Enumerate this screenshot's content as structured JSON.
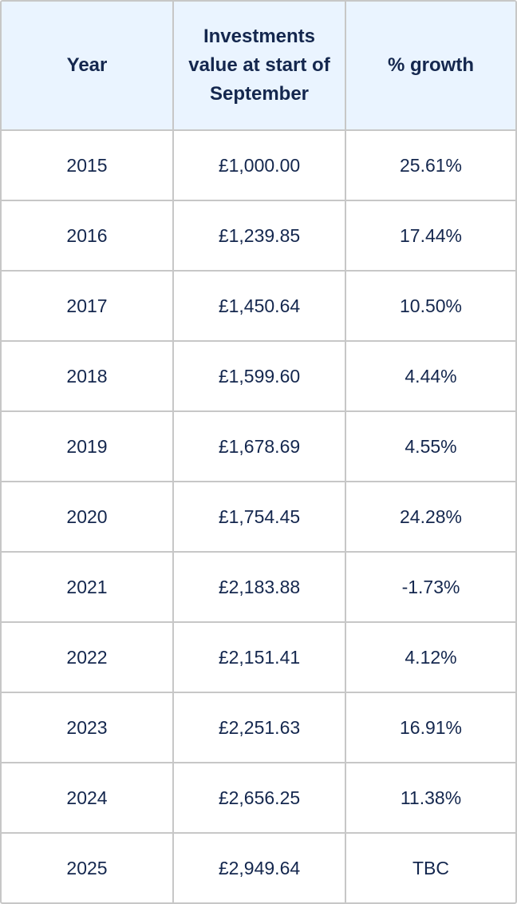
{
  "table": {
    "headers": {
      "year": "Year",
      "value": "Investments value at start of September",
      "growth": "% growth"
    },
    "rows": [
      {
        "year": "2015",
        "value": "£1,000.00",
        "growth": "25.61%"
      },
      {
        "year": "2016",
        "value": "£1,239.85",
        "growth": "17.44%"
      },
      {
        "year": "2017",
        "value": "£1,450.64",
        "growth": "10.50%"
      },
      {
        "year": "2018",
        "value": "£1,599.60",
        "growth": "4.44%"
      },
      {
        "year": "2019",
        "value": "£1,678.69",
        "growth": "4.55%"
      },
      {
        "year": "2020",
        "value": "£1,754.45",
        "growth": "24.28%"
      },
      {
        "year": "2021",
        "value": "£2,183.88",
        "growth": "-1.73%"
      },
      {
        "year": "2022",
        "value": "£2,151.41",
        "growth": "4.12%"
      },
      {
        "year": "2023",
        "value": "£2,251.63",
        "growth": "16.91%"
      },
      {
        "year": "2024",
        "value": "£2,656.25",
        "growth": "11.38%"
      },
      {
        "year": "2025",
        "value": "£2,949.64",
        "growth": "TBC"
      }
    ]
  },
  "colors": {
    "header_background": "#eaf4ff",
    "text": "#14274e",
    "border": "#c7c7c7"
  }
}
